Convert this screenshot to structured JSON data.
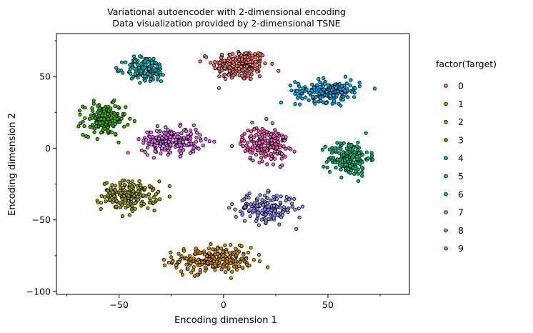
{
  "chart_data": {
    "type": "scatter",
    "title_line1": "Variational autoencoder with 2-dimensional encoding",
    "title_line2": "Data visualization provided by 2-dimensional TSNE",
    "xlabel": "Encoding dimension 1",
    "ylabel": "Encoding dimension 2",
    "xlim": [
      -80,
      89
    ],
    "ylim": [
      -102,
      80
    ],
    "xticks": [
      -50,
      0,
      50
    ],
    "yticks": [
      50,
      0,
      -50,
      -100
    ],
    "xtick_labels": [
      "−50",
      "0",
      "50"
    ],
    "ytick_labels": [
      "50",
      "0",
      "−50",
      "−100"
    ],
    "grid": false,
    "legend": {
      "title": "factor(Target)",
      "placement": "right",
      "entries": [
        "0",
        "1",
        "2",
        "3",
        "4",
        "5",
        "6",
        "7",
        "8",
        "9"
      ]
    },
    "series": [
      {
        "name": "0",
        "color": "#f8766d",
        "center": [
          8,
          58
        ],
        "spread": [
          12,
          10
        ],
        "count": 210
      },
      {
        "name": "1",
        "color": "#d89000",
        "center": [
          -5,
          -78
        ],
        "spread": [
          17,
          8
        ],
        "count": 230
      },
      {
        "name": "2",
        "color": "#a3a500",
        "center": [
          -45,
          -33
        ],
        "spread": [
          12,
          9
        ],
        "count": 190
      },
      {
        "name": "3",
        "color": "#39b600",
        "center": [
          -57,
          20
        ],
        "spread": [
          9,
          10
        ],
        "count": 170
      },
      {
        "name": "4",
        "color": "#00bf7d",
        "center": [
          60,
          -7
        ],
        "spread": [
          9,
          11
        ],
        "count": 170
      },
      {
        "name": "5",
        "color": "#00bfc4",
        "center": [
          -37,
          55
        ],
        "spread": [
          9,
          8
        ],
        "count": 150
      },
      {
        "name": "6",
        "color": "#00b0f6",
        "center": [
          50,
          40
        ],
        "spread": [
          14,
          7
        ],
        "count": 190
      },
      {
        "name": "7",
        "color": "#9590ff",
        "center": [
          20,
          -42
        ],
        "spread": [
          13,
          9
        ],
        "count": 180
      },
      {
        "name": "8",
        "color": "#e76bf3",
        "center": [
          -25,
          5
        ],
        "spread": [
          13,
          8
        ],
        "count": 200
      },
      {
        "name": "9",
        "color": "#ff62bc",
        "center": [
          20,
          3
        ],
        "spread": [
          10,
          11
        ],
        "count": 200
      }
    ]
  }
}
